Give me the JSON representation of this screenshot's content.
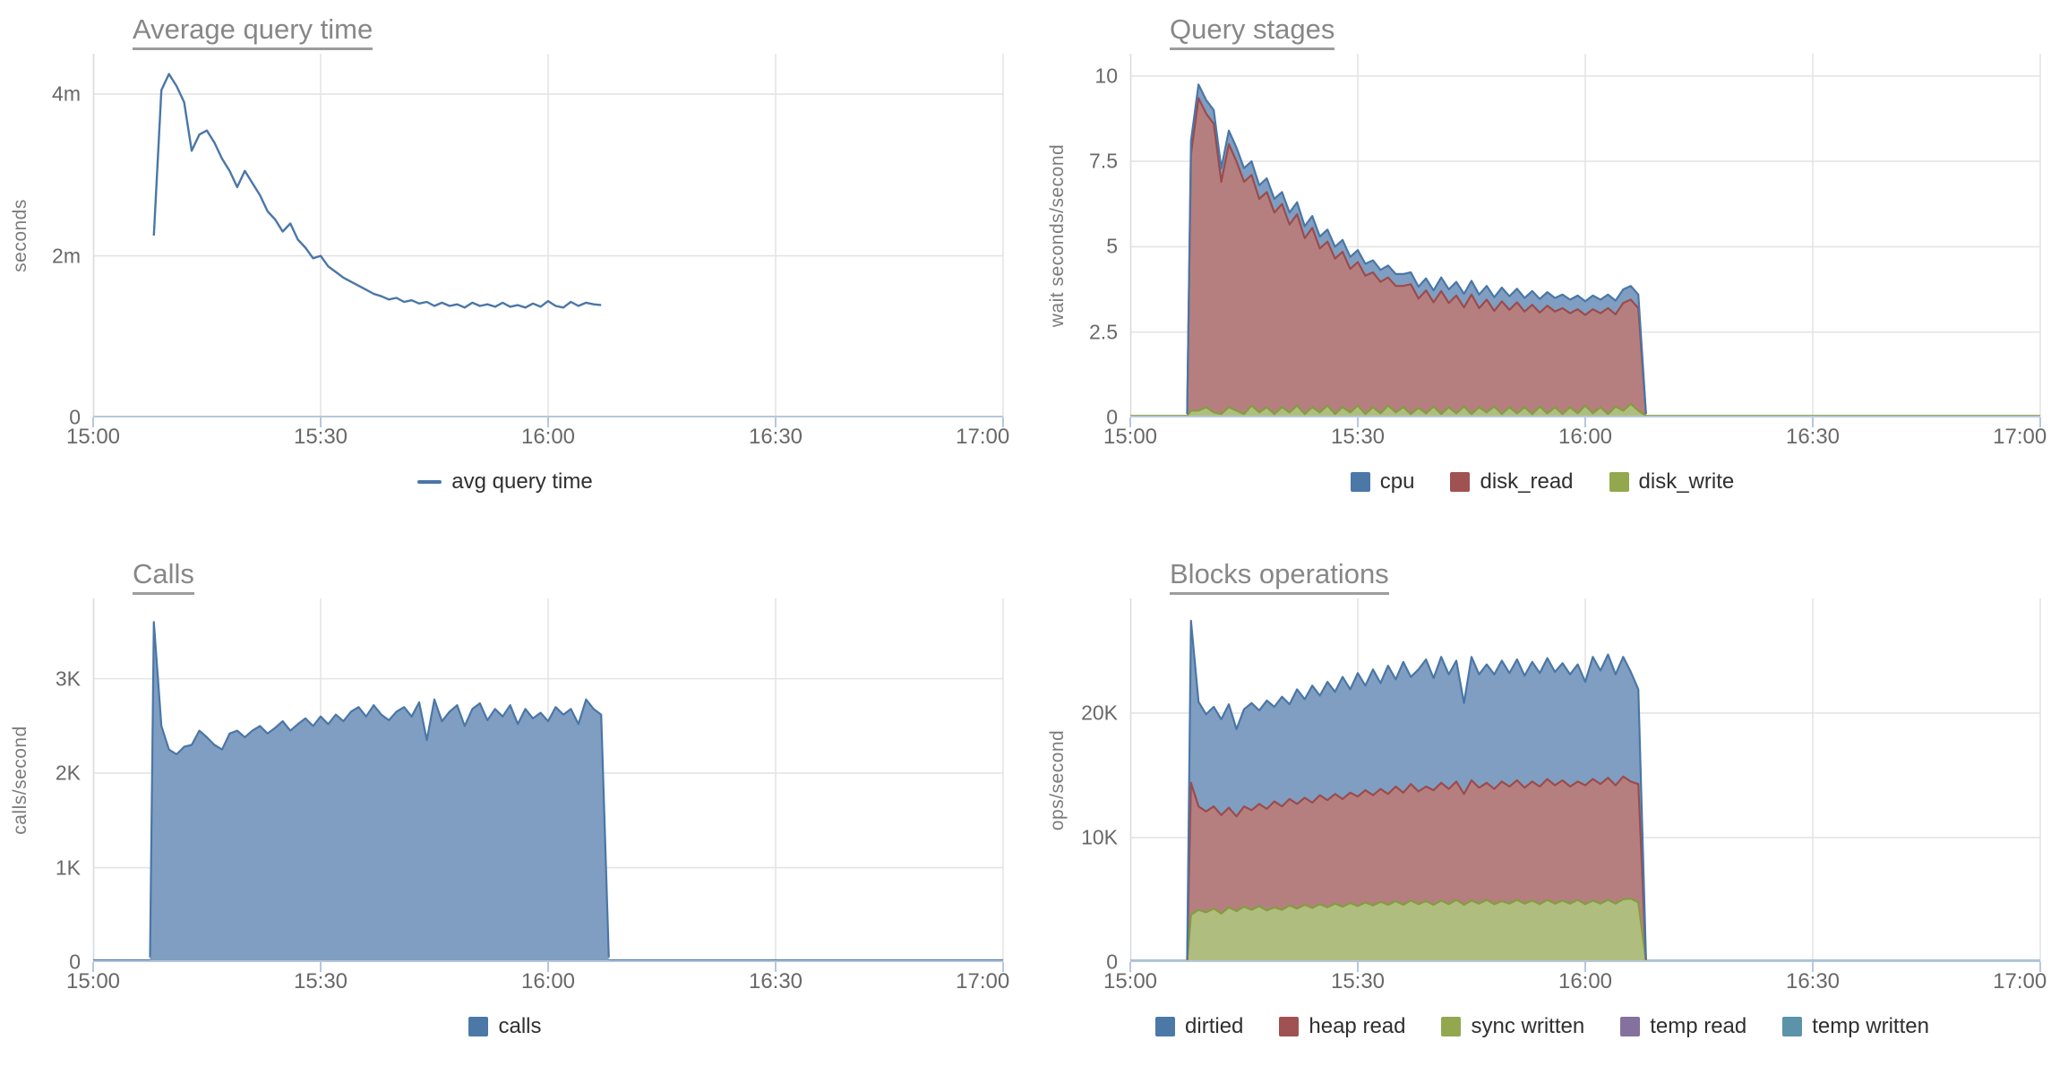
{
  "chart_data": [
    {
      "type": "line",
      "title": "Average query time",
      "ylabel": "seconds",
      "x_domain": [
        0,
        120
      ],
      "x_ticks": [
        {
          "t": 0,
          "label": "15:00"
        },
        {
          "t": 30,
          "label": "15:30"
        },
        {
          "t": 60,
          "label": "16:00"
        },
        {
          "t": 90,
          "label": "16:30"
        },
        {
          "t": 120,
          "label": "17:00"
        }
      ],
      "y_max": 4.5,
      "y_ticks": [
        {
          "v": 0,
          "label": "0"
        },
        {
          "v": 2,
          "label": "2m"
        },
        {
          "v": 4,
          "label": "4m"
        }
      ],
      "x": [
        7.5,
        8,
        9,
        10,
        11,
        12,
        13,
        14,
        15,
        16,
        17,
        18,
        19,
        20,
        21,
        22,
        23,
        24,
        25,
        26,
        27,
        28,
        29,
        30,
        31,
        32,
        33,
        34,
        35,
        36,
        37,
        38,
        39,
        40,
        41,
        42,
        43,
        44,
        45,
        46,
        47,
        48,
        49,
        50,
        51,
        52,
        53,
        54,
        55,
        56,
        57,
        58,
        59,
        60,
        61,
        62,
        63,
        64,
        65,
        66,
        67,
        68
      ],
      "series": [
        {
          "name": "avg query time",
          "color": "#4A76A8",
          "fill": "none",
          "values": [
            null,
            2.25,
            4.05,
            4.25,
            4.1,
            3.9,
            3.3,
            3.5,
            3.55,
            3.4,
            3.2,
            3.05,
            2.85,
            3.05,
            2.9,
            2.75,
            2.55,
            2.45,
            2.3,
            2.4,
            2.2,
            2.1,
            1.97,
            2.0,
            1.87,
            1.8,
            1.73,
            1.68,
            1.63,
            1.58,
            1.53,
            1.5,
            1.46,
            1.48,
            1.43,
            1.45,
            1.41,
            1.43,
            1.38,
            1.42,
            1.38,
            1.4,
            1.36,
            1.42,
            1.38,
            1.4,
            1.37,
            1.42,
            1.37,
            1.39,
            1.36,
            1.41,
            1.37,
            1.44,
            1.38,
            1.36,
            1.43,
            1.38,
            1.42,
            1.4,
            1.39,
            null
          ]
        }
      ],
      "legend": [
        {
          "label": "avg query time",
          "color": "#4A76A8",
          "swatch": "line"
        }
      ]
    },
    {
      "type": "stacked_area",
      "title": "Query stages",
      "ylabel": "wait seconds/second",
      "x_domain": [
        0,
        120
      ],
      "x_ticks": [
        {
          "t": 0,
          "label": "15:00"
        },
        {
          "t": 30,
          "label": "15:30"
        },
        {
          "t": 60,
          "label": "16:00"
        },
        {
          "t": 90,
          "label": "16:30"
        },
        {
          "t": 120,
          "label": "17:00"
        }
      ],
      "y_max": 10.65,
      "y_ticks": [
        {
          "v": 0,
          "label": "0"
        },
        {
          "v": 2.5,
          "label": "2.5"
        },
        {
          "v": 5,
          "label": "5"
        },
        {
          "v": 7.5,
          "label": "7.5"
        },
        {
          "v": 10,
          "label": "10"
        }
      ],
      "baseline": {
        "v": 0.05,
        "color": "#859C41"
      },
      "x": [
        7.5,
        8,
        9,
        10,
        11,
        12,
        13,
        14,
        15,
        16,
        17,
        18,
        19,
        20,
        21,
        22,
        23,
        24,
        25,
        26,
        27,
        28,
        29,
        30,
        31,
        32,
        33,
        34,
        35,
        36,
        37,
        38,
        39,
        40,
        41,
        42,
        43,
        44,
        45,
        46,
        47,
        48,
        49,
        50,
        51,
        52,
        53,
        54,
        55,
        56,
        57,
        58,
        59,
        60,
        61,
        62,
        63,
        64,
        65,
        66,
        67,
        68
      ],
      "series": [
        {
          "name": "disk_write",
          "color": "#859C41",
          "fill": "#AFBE7E",
          "values": [
            0.05,
            0.2,
            0.2,
            0.3,
            0.15,
            0.1,
            0.3,
            0.2,
            0.1,
            0.35,
            0.15,
            0.3,
            0.1,
            0.3,
            0.15,
            0.35,
            0.1,
            0.3,
            0.15,
            0.35,
            0.1,
            0.3,
            0.15,
            0.35,
            0.1,
            0.3,
            0.12,
            0.35,
            0.15,
            0.3,
            0.1,
            0.28,
            0.12,
            0.32,
            0.1,
            0.3,
            0.12,
            0.32,
            0.1,
            0.3,
            0.15,
            0.32,
            0.1,
            0.3,
            0.12,
            0.3,
            0.1,
            0.32,
            0.12,
            0.3,
            0.1,
            0.3,
            0.12,
            0.35,
            0.12,
            0.3,
            0.1,
            0.32,
            0.2,
            0.4,
            0.2,
            0.05
          ]
        },
        {
          "name": "disk_read",
          "color": "#9C4B4B",
          "fill": "#B67F7F",
          "values": [
            0.05,
            7.5,
            9.15,
            8.6,
            8.45,
            6.8,
            7.7,
            7.3,
            6.8,
            6.75,
            6.25,
            6.3,
            5.9,
            5.95,
            5.5,
            5.6,
            5.15,
            5.25,
            4.8,
            4.8,
            4.55,
            4.55,
            4.2,
            4.2,
            4.05,
            3.95,
            3.85,
            3.75,
            3.7,
            3.55,
            3.8,
            3.2,
            3.6,
            3.05,
            3.6,
            3.05,
            3.45,
            2.9,
            3.5,
            2.9,
            3.3,
            2.8,
            3.3,
            2.85,
            3.25,
            2.8,
            3.2,
            2.75,
            3.15,
            2.8,
            3.1,
            2.75,
            3.05,
            2.65,
            3.05,
            2.75,
            3.1,
            2.7,
            3.15,
            3.05,
            3.0,
            0.05
          ]
        },
        {
          "name": "cpu",
          "color": "#4A76A6",
          "fill": "#7F9EC2",
          "values": [
            0.02,
            0.4,
            0.4,
            0.4,
            0.4,
            0.4,
            0.4,
            0.4,
            0.4,
            0.4,
            0.4,
            0.4,
            0.4,
            0.35,
            0.35,
            0.35,
            0.35,
            0.35,
            0.35,
            0.35,
            0.35,
            0.35,
            0.35,
            0.35,
            0.35,
            0.35,
            0.35,
            0.35,
            0.35,
            0.35,
            0.35,
            0.35,
            0.35,
            0.35,
            0.4,
            0.4,
            0.4,
            0.4,
            0.4,
            0.4,
            0.4,
            0.4,
            0.4,
            0.4,
            0.4,
            0.4,
            0.4,
            0.4,
            0.4,
            0.4,
            0.4,
            0.4,
            0.4,
            0.4,
            0.4,
            0.4,
            0.4,
            0.4,
            0.4,
            0.4,
            0.4,
            0.02
          ]
        }
      ],
      "legend": [
        {
          "label": "cpu",
          "color": "#4C78A8",
          "swatch": "square"
        },
        {
          "label": "disk_read",
          "color": "#A05252",
          "swatch": "square"
        },
        {
          "label": "disk_write",
          "color": "#93A84E",
          "swatch": "square"
        }
      ]
    },
    {
      "type": "area",
      "title": "Calls",
      "ylabel": "calls/second",
      "x_domain": [
        0,
        120
      ],
      "x_ticks": [
        {
          "t": 0,
          "label": "15:00"
        },
        {
          "t": 30,
          "label": "15:30"
        },
        {
          "t": 60,
          "label": "16:00"
        },
        {
          "t": 90,
          "label": "16:30"
        },
        {
          "t": 120,
          "label": "17:00"
        }
      ],
      "y_max": 3.85,
      "y_ticks": [
        {
          "v": 0,
          "label": "0"
        },
        {
          "v": 1,
          "label": "1K"
        },
        {
          "v": 2,
          "label": "2K"
        },
        {
          "v": 3,
          "label": "3K"
        }
      ],
      "baseline": {
        "v": 0.02,
        "color": "#4A76A8"
      },
      "x": [
        7.5,
        8,
        9,
        10,
        11,
        12,
        13,
        14,
        15,
        16,
        17,
        18,
        19,
        20,
        21,
        22,
        23,
        24,
        25,
        26,
        27,
        28,
        29,
        30,
        31,
        32,
        33,
        34,
        35,
        36,
        37,
        38,
        39,
        40,
        41,
        42,
        43,
        44,
        45,
        46,
        47,
        48,
        49,
        50,
        51,
        52,
        53,
        54,
        55,
        56,
        57,
        58,
        59,
        60,
        61,
        62,
        63,
        64,
        65,
        66,
        67,
        68
      ],
      "series": [
        {
          "name": "calls",
          "color": "#4A76A6",
          "fill": "#7F9EC2",
          "values": [
            0.05,
            3.6,
            2.5,
            2.25,
            2.2,
            2.28,
            2.3,
            2.45,
            2.38,
            2.3,
            2.25,
            2.42,
            2.45,
            2.38,
            2.45,
            2.5,
            2.42,
            2.48,
            2.55,
            2.45,
            2.52,
            2.58,
            2.5,
            2.6,
            2.52,
            2.62,
            2.55,
            2.65,
            2.7,
            2.6,
            2.72,
            2.62,
            2.56,
            2.65,
            2.7,
            2.6,
            2.75,
            2.35,
            2.78,
            2.55,
            2.65,
            2.72,
            2.5,
            2.68,
            2.74,
            2.56,
            2.68,
            2.6,
            2.72,
            2.52,
            2.68,
            2.58,
            2.64,
            2.55,
            2.7,
            2.62,
            2.68,
            2.52,
            2.78,
            2.68,
            2.62,
            0.05
          ]
        }
      ],
      "legend": [
        {
          "label": "calls",
          "color": "#4C78A8",
          "swatch": "square"
        }
      ]
    },
    {
      "type": "stacked_area",
      "title": "Blocks operations",
      "ylabel": "ops/second",
      "x_domain": [
        0,
        120
      ],
      "x_ticks": [
        {
          "t": 0,
          "label": "15:00"
        },
        {
          "t": 30,
          "label": "15:30"
        },
        {
          "t": 60,
          "label": "16:00"
        },
        {
          "t": 90,
          "label": "16:30"
        },
        {
          "t": 120,
          "label": "17:00"
        }
      ],
      "y_max": 29.2,
      "y_ticks": [
        {
          "v": 0,
          "label": "0"
        },
        {
          "v": 10,
          "label": "10K"
        },
        {
          "v": 20,
          "label": "20K"
        }
      ],
      "baseline": {
        "v": 0.12,
        "color": "#5B93A8"
      },
      "x": [
        7.5,
        8,
        9,
        10,
        11,
        12,
        13,
        14,
        15,
        16,
        17,
        18,
        19,
        20,
        21,
        22,
        23,
        24,
        25,
        26,
        27,
        28,
        29,
        30,
        31,
        32,
        33,
        34,
        35,
        36,
        37,
        38,
        39,
        40,
        41,
        42,
        43,
        44,
        45,
        46,
        47,
        48,
        49,
        50,
        51,
        52,
        53,
        54,
        55,
        56,
        57,
        58,
        59,
        60,
        61,
        62,
        63,
        64,
        65,
        66,
        67,
        68
      ],
      "series": [
        {
          "name": "sync written",
          "color": "#859C41",
          "fill": "#AFBE7E",
          "values": [
            0.1,
            3.8,
            4.2,
            4.0,
            4.3,
            3.9,
            4.4,
            4.1,
            4.45,
            4.2,
            4.5,
            4.15,
            4.4,
            4.2,
            4.55,
            4.3,
            4.6,
            4.35,
            4.65,
            4.4,
            4.7,
            4.45,
            4.75,
            4.5,
            4.8,
            4.55,
            4.85,
            4.6,
            4.9,
            4.6,
            4.95,
            4.65,
            4.9,
            4.6,
            4.95,
            4.65,
            5.0,
            4.6,
            4.95,
            4.7,
            5.0,
            4.65,
            4.9,
            4.7,
            5.0,
            4.7,
            4.95,
            4.65,
            5.0,
            4.7,
            4.95,
            4.7,
            5.0,
            4.65,
            4.95,
            4.7,
            5.0,
            4.7,
            5.05,
            5.1,
            4.8,
            0.1
          ]
        },
        {
          "name": "heap read",
          "color": "#9C4B4B",
          "fill": "#B67F7F",
          "values": [
            0.1,
            10.6,
            8.3,
            8.1,
            8.2,
            7.9,
            8.0,
            7.6,
            8.05,
            8.0,
            8.2,
            8.15,
            8.5,
            8.3,
            8.55,
            8.4,
            8.6,
            8.45,
            8.75,
            8.6,
            8.8,
            8.65,
            8.85,
            8.8,
            9.0,
            8.85,
            9.05,
            8.9,
            9.2,
            9.0,
            9.35,
            9.05,
            9.2,
            9.2,
            9.45,
            9.25,
            9.5,
            8.9,
            9.65,
            9.3,
            9.4,
            9.25,
            9.6,
            9.4,
            9.6,
            9.3,
            9.55,
            9.45,
            9.7,
            9.5,
            9.65,
            9.4,
            9.5,
            9.55,
            9.75,
            9.6,
            9.8,
            9.5,
            9.85,
            9.4,
            9.5,
            0.1
          ]
        },
        {
          "name": "dirtied",
          "color": "#4A76A6",
          "fill": "#7F9EC2",
          "values": [
            0.1,
            13.0,
            8.4,
            7.8,
            8.0,
            7.7,
            8.3,
            7.0,
            7.8,
            8.6,
            7.5,
            8.7,
            7.6,
            8.8,
            7.6,
            9.2,
            7.9,
            9.4,
            8.0,
            9.5,
            8.2,
            9.8,
            8.3,
            9.9,
            8.4,
            10.1,
            8.5,
            10.3,
            8.6,
            10.5,
            8.6,
            9.8,
            10.2,
            9.0,
            10.1,
            9.2,
            9.7,
            7.3,
            9.9,
            9.1,
            9.5,
            9.2,
            9.7,
            9.1,
            9.7,
            9.0,
            9.6,
            9.1,
            9.7,
            9.1,
            9.4,
            9.0,
            9.4,
            8.3,
            9.8,
            9.1,
            9.9,
            8.9,
            9.6,
            8.8,
            7.6,
            0.1
          ]
        }
      ],
      "legend": [
        {
          "label": "dirtied",
          "color": "#4C78A8",
          "swatch": "square"
        },
        {
          "label": "heap read",
          "color": "#A05252",
          "swatch": "square"
        },
        {
          "label": "sync written",
          "color": "#93A84E",
          "swatch": "square"
        },
        {
          "label": "temp read",
          "color": "#84719E",
          "swatch": "square"
        },
        {
          "label": "temp written",
          "color": "#5B93A8",
          "swatch": "square"
        }
      ]
    }
  ]
}
